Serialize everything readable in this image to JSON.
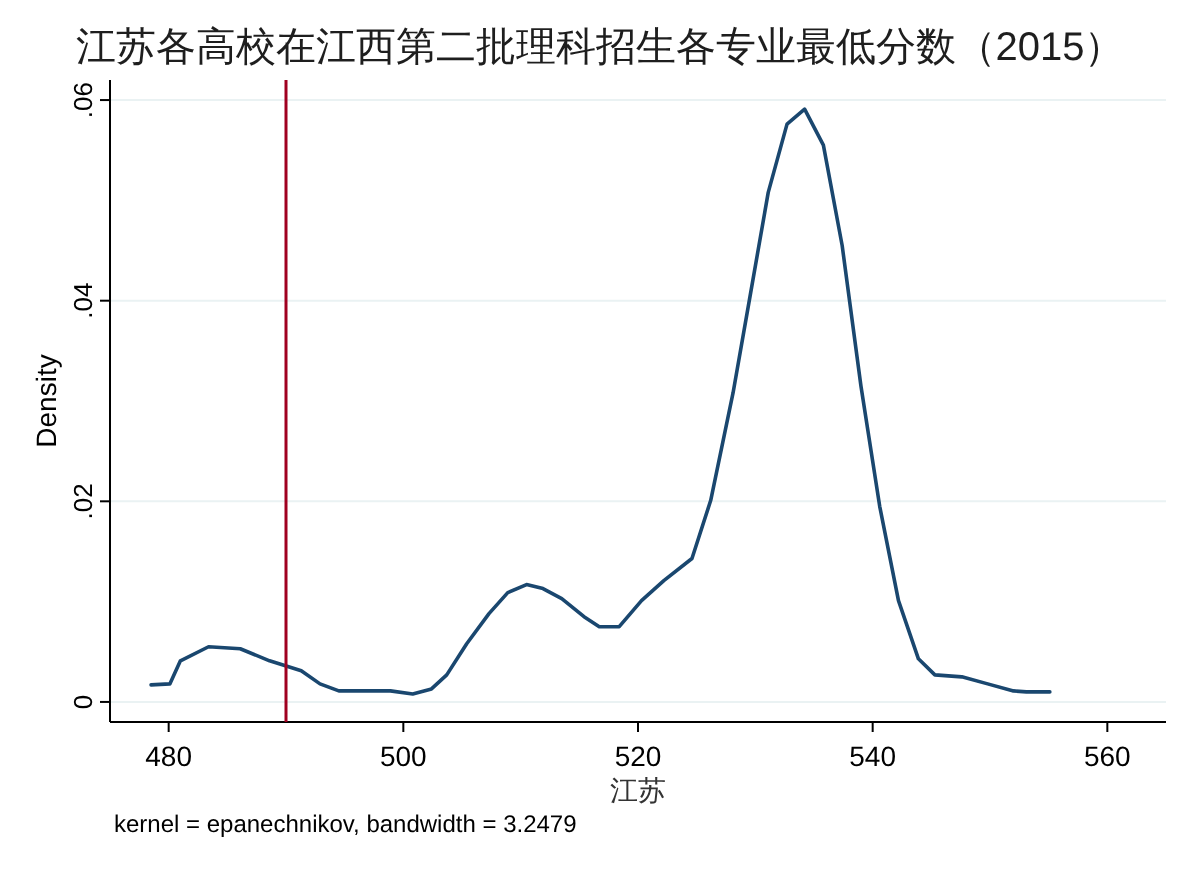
{
  "chart_data": {
    "type": "line",
    "title": "江苏各高校在江西第二批理科招生各专业最低分数（2015）",
    "xlabel": "江苏",
    "ylabel": "Density",
    "annotations": [
      "kernel = epanechnikov, bandwidth = 3.2479"
    ],
    "series": [
      {
        "color": "#1a476f",
        "x": [
          478.5,
          480.1,
          481.0,
          483.4,
          486.1,
          488.6,
          491.3,
          492.9,
          494.5,
          498.9,
          500.8,
          502.4,
          503.7,
          505.4,
          507.3,
          508.9,
          510.5,
          511.9,
          513.5,
          515.4,
          516.7,
          518.4,
          520.3,
          522.2,
          524.6,
          526.2,
          528.1,
          529.5,
          531.1,
          532.7,
          534.2,
          535.8,
          537.4,
          539.0,
          540.6,
          542.2,
          543.9,
          545.3,
          547.6,
          549.8,
          552.0,
          553.1,
          555.1
        ],
        "values": [
          0.0017,
          0.0018,
          0.0041,
          0.0055,
          0.0053,
          0.0041,
          0.0031,
          0.0018,
          0.0011,
          0.0011,
          0.0008,
          0.0013,
          0.0027,
          0.0058,
          0.0088,
          0.0109,
          0.0117,
          0.0113,
          0.0103,
          0.0085,
          0.0075,
          0.0075,
          0.0101,
          0.0121,
          0.0143,
          0.0201,
          0.0308,
          0.0401,
          0.0508,
          0.0576,
          0.0591,
          0.0555,
          0.0455,
          0.0315,
          0.0195,
          0.0101,
          0.0043,
          0.0027,
          0.0025,
          0.0018,
          0.0011,
          0.001,
          0.001
        ]
      }
    ],
    "xlim": [
      475,
      565
    ],
    "xticks": [
      480,
      500,
      520,
      540,
      560
    ],
    "ylim": [
      -0.002,
      0.062
    ],
    "yticks": [
      {
        "value": 0,
        "label": "0"
      },
      {
        "value": 0.02,
        "label": ".02"
      },
      {
        "value": 0.04,
        "label": ".04"
      },
      {
        "value": 0.06,
        "label": ".06"
      }
    ],
    "grid": "y",
    "marker": "none",
    "line_style": "solid",
    "ref_lines": [
      {
        "axis": "x",
        "value": 490,
        "color": "#a00020"
      }
    ]
  }
}
